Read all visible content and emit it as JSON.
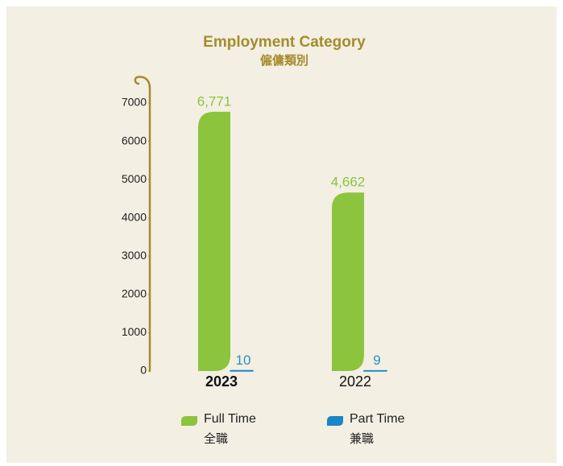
{
  "chart_data": {
    "type": "bar",
    "title": "Employment Category",
    "subtitle": "僱傭類別",
    "categories": [
      "2023",
      "2022"
    ],
    "highlight": 0,
    "series": [
      {
        "name": "Full Time",
        "name_zh": "全職",
        "color": "#8cc43e",
        "label_color": "#8cc43e",
        "values": [
          6771,
          4662
        ],
        "value_labels": [
          "6,771",
          "4,662"
        ]
      },
      {
        "name": "Part Time",
        "name_zh": "兼職",
        "color": "#1a86c4",
        "label_color": "#2a8fc7",
        "values": [
          10,
          9
        ]
      }
    ],
    "ylim": [
      0,
      7000
    ],
    "yticks": [
      0,
      1000,
      2000,
      3000,
      4000,
      5000,
      6000,
      7000
    ],
    "axis_color": "#a48c2c"
  }
}
